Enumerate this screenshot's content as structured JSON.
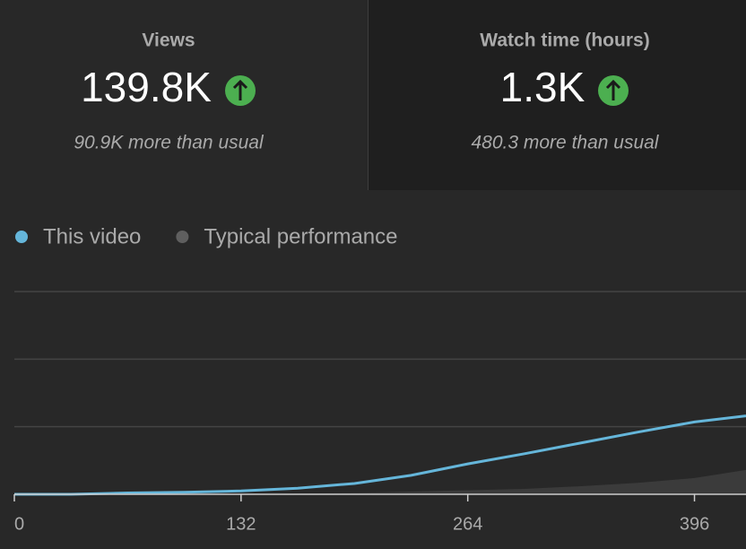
{
  "stats": [
    {
      "label": "Views",
      "value": "139.8K",
      "note": "90.9K more than usual"
    },
    {
      "label": "Watch time (hours)",
      "value": "1.3K",
      "note": "480.3 more than usual"
    }
  ],
  "chart_data": {
    "type": "line",
    "x": [
      0,
      33,
      66,
      99,
      132,
      165,
      198,
      231,
      264,
      297,
      330,
      363,
      396,
      426
    ],
    "series": [
      {
        "name": "This video",
        "color": "#65b6da",
        "values": [
          0,
          0,
          0.02,
          0.03,
          0.05,
          0.09,
          0.16,
          0.28,
          0.45,
          0.6,
          0.76,
          0.92,
          1.07,
          1.16
        ]
      },
      {
        "name": "Typical performance",
        "color": "#5f5f5f",
        "fill": "#3b3b3b",
        "values": [
          0,
          0,
          0,
          0,
          0,
          0.01,
          0.02,
          0.04,
          0.06,
          0.08,
          0.12,
          0.17,
          0.24,
          0.36
        ]
      }
    ],
    "xlim": [
      0,
      426
    ],
    "xticks": [
      0,
      132,
      264,
      396
    ],
    "ylim": [
      0,
      3
    ],
    "grid_y": [
      1,
      2,
      3
    ]
  }
}
